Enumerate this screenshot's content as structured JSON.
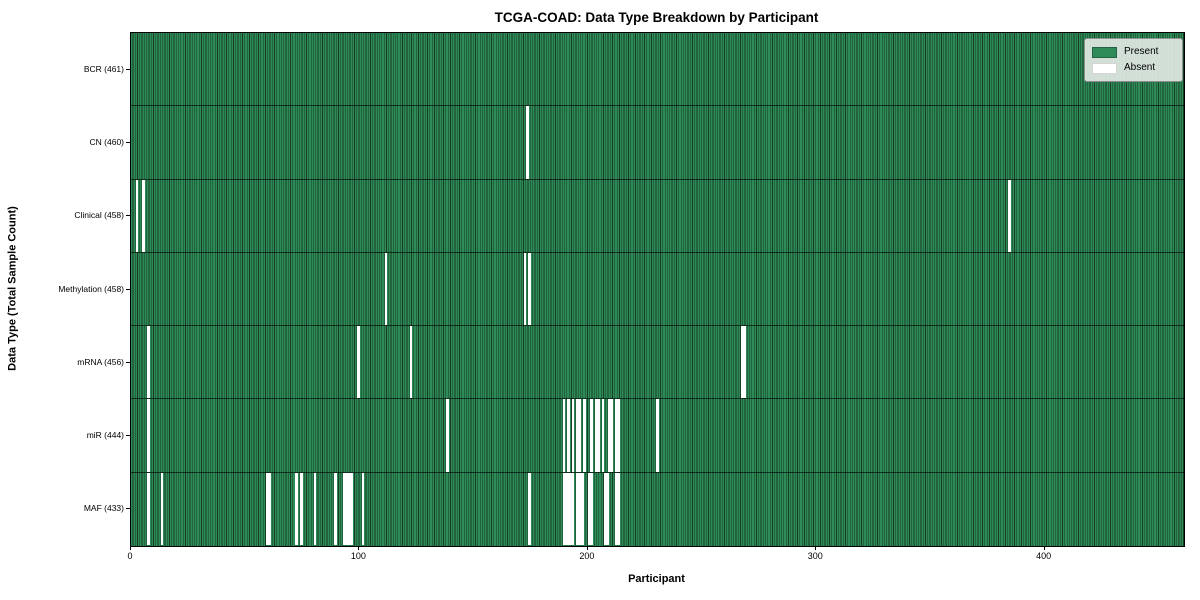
{
  "title": "TCGA-COAD: Data Type Breakdown by Participant",
  "xlabel": "Participant",
  "ylabel": "Data Type (Total Sample Count)",
  "legend": {
    "present_label": "Present",
    "absent_label": "Absent"
  },
  "colors": {
    "present_green": "#2e8b57",
    "present_edge_dark": "#173d26",
    "absent_white": "#ffffff",
    "row_separator": "rgba(0,0,0,0.62)",
    "legend_background": "#eaeeea"
  },
  "x_ticks": [
    0,
    100,
    200,
    300,
    400
  ],
  "chart_data": {
    "type": "heatmap",
    "title": "TCGA-COAD: Data Type Breakdown by Participant",
    "xlabel": "Participant",
    "ylabel": "Data Type (Total Sample Count)",
    "xlim": [
      0,
      461
    ],
    "n_participants": 461,
    "legend_entries": [
      "Present",
      "Absent"
    ],
    "legend_position": "upper right",
    "cell_values": "binary presence matrix; green=present, white=absent",
    "rows": [
      {
        "label": "BCR (461)",
        "data_type": "BCR",
        "present_count": 461,
        "absent_participants": []
      },
      {
        "label": "CN (460)",
        "data_type": "CN",
        "present_count": 460,
        "absent_participants": [
          173
        ]
      },
      {
        "label": "Clinical (458)",
        "data_type": "Clinical",
        "present_count": 458,
        "absent_participants": [
          2,
          5,
          384
        ]
      },
      {
        "label": "Methylation (458)",
        "data_type": "Methylation",
        "present_count": 458,
        "absent_participants": [
          111,
          172,
          174
        ]
      },
      {
        "label": "mRNA (456)",
        "data_type": "mRNA",
        "present_count": 456,
        "absent_participants": [
          7,
          99,
          122,
          267,
          268
        ]
      },
      {
        "label": "miR (444)",
        "data_type": "miR",
        "present_count": 444,
        "absent_participants": [
          7,
          138,
          189,
          191,
          193,
          195,
          196,
          198,
          201,
          203,
          204,
          206,
          209,
          210,
          212,
          213,
          230
        ]
      },
      {
        "label": "MAF (433)",
        "data_type": "MAF",
        "present_count": 433,
        "absent_participants": [
          7,
          13,
          59,
          60,
          72,
          74,
          80,
          89,
          93,
          94,
          95,
          96,
          101,
          174,
          189,
          190,
          191,
          192,
          193,
          195,
          196,
          197,
          200,
          201,
          207,
          208,
          212,
          213
        ]
      }
    ]
  }
}
